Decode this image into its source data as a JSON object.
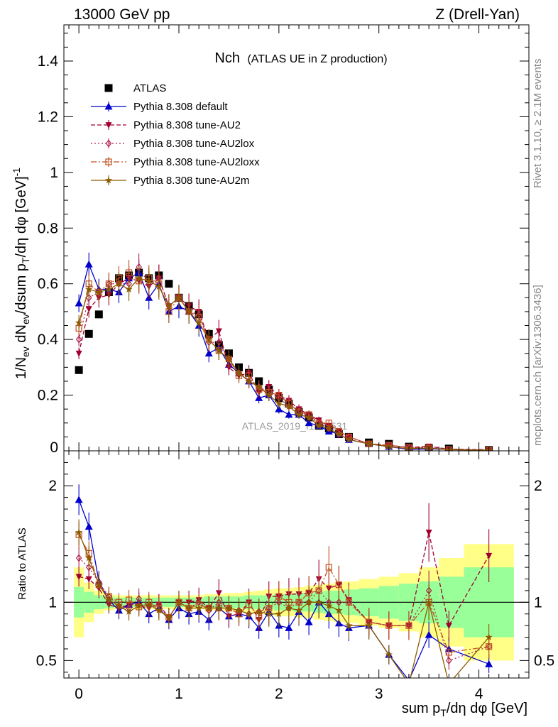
{
  "header": {
    "left": "13000 GeV pp",
    "right": "Z (Drell-Yan)"
  },
  "side_labels": {
    "rivet": "Rivet 3.1.10, ≥ 2.1M events",
    "mcplots": "mcplots.cern.ch [arXiv:1306.3436]"
  },
  "watermark": "ATLAS_2019_I1736531",
  "chart_data": [
    {
      "type": "scatter",
      "panel": "main",
      "title": "Nch",
      "subtitle": "(ATLAS UE in Z production)",
      "ylabel": "1/N_ev dN_ev/dsum p_T/dη dφ [GeV]^-1",
      "xlim": [
        -0.15,
        4.5
      ],
      "ylim": [
        0,
        1.53
      ],
      "x_ticks": [
        0,
        1,
        2,
        3,
        4
      ],
      "y_ticks": [
        0.2,
        0.4,
        0.6,
        0.8,
        1,
        1.2,
        1.4
      ],
      "y_tick_labels": [
        "0.2",
        "0.4",
        "0.6",
        "0.8",
        "1",
        "1.2",
        "1.4"
      ],
      "y_zero_label": "0",
      "legend_position": "top-left",
      "x": [
        0.0,
        0.1,
        0.2,
        0.3,
        0.4,
        0.5,
        0.6,
        0.7,
        0.8,
        0.9,
        1.0,
        1.1,
        1.2,
        1.3,
        1.4,
        1.5,
        1.6,
        1.7,
        1.8,
        1.9,
        2.0,
        2.1,
        2.2,
        2.3,
        2.4,
        2.5,
        2.6,
        2.7,
        2.9,
        3.1,
        3.3,
        3.5,
        3.7,
        4.1
      ],
      "series": [
        {
          "name": "ATLAS",
          "color": "#000000",
          "marker": "square",
          "line": "none",
          "values": [
            0.29,
            0.42,
            0.49,
            0.57,
            0.62,
            0.63,
            0.64,
            0.62,
            0.63,
            0.6,
            0.55,
            0.52,
            0.49,
            0.42,
            0.38,
            0.35,
            0.3,
            0.28,
            0.25,
            0.22,
            0.19,
            0.17,
            0.14,
            0.12,
            0.09,
            0.08,
            0.06,
            0.05,
            0.03,
            0.025,
            0.015,
            0.01,
            0.008,
            0.003
          ]
        },
        {
          "name": "Pythia 8.308 default",
          "color": "#0000cc",
          "marker": "triangle-up",
          "line": "solid",
          "values": [
            0.53,
            0.67,
            0.58,
            0.58,
            0.57,
            0.62,
            0.64,
            0.55,
            0.6,
            0.5,
            0.52,
            0.5,
            0.45,
            0.35,
            0.37,
            0.31,
            0.28,
            0.25,
            0.19,
            0.2,
            0.15,
            0.13,
            0.13,
            0.1,
            0.09,
            0.07,
            0.06,
            0.04,
            0.025,
            0.015,
            0.005,
            0.007,
            0.005,
            0.002
          ]
        },
        {
          "name": "Pythia 8.308 tune-AU2",
          "color": "#a00030",
          "marker": "triangle-down",
          "line": "dashed",
          "values": [
            0.35,
            0.51,
            0.55,
            0.56,
            0.6,
            0.62,
            0.61,
            0.59,
            0.62,
            0.52,
            0.55,
            0.52,
            0.5,
            0.4,
            0.43,
            0.3,
            0.27,
            0.28,
            0.21,
            0.23,
            0.2,
            0.18,
            0.15,
            0.13,
            0.11,
            0.09,
            0.07,
            0.05,
            0.025,
            0.02,
            0.012,
            0.016,
            0.006,
            0.004
          ]
        },
        {
          "name": "Pythia 8.308 tune-AU2lox",
          "color": "#b02050",
          "marker": "diamond-open",
          "line": "dotted",
          "values": [
            0.4,
            0.55,
            0.57,
            0.6,
            0.6,
            0.6,
            0.66,
            0.6,
            0.62,
            0.52,
            0.55,
            0.5,
            0.49,
            0.39,
            0.39,
            0.33,
            0.28,
            0.25,
            0.23,
            0.21,
            0.19,
            0.16,
            0.14,
            0.12,
            0.1,
            0.08,
            0.06,
            0.05,
            0.025,
            0.02,
            0.012,
            0.011,
            0.004,
            0.002
          ]
        },
        {
          "name": "Pythia 8.308 tune-AU2loxx",
          "color": "#c05020",
          "marker": "square-open",
          "line": "dashdot",
          "values": [
            0.44,
            0.6,
            0.57,
            0.6,
            0.62,
            0.64,
            0.61,
            0.62,
            0.6,
            0.5,
            0.55,
            0.5,
            0.48,
            0.4,
            0.36,
            0.33,
            0.27,
            0.27,
            0.22,
            0.21,
            0.2,
            0.17,
            0.14,
            0.13,
            0.1,
            0.1,
            0.07,
            0.05,
            0.025,
            0.02,
            0.012,
            0.01,
            0.005,
            0.002
          ]
        },
        {
          "name": "Pythia 8.308 tune-AU2m",
          "color": "#8b5a00",
          "marker": "star",
          "line": "solid",
          "values": [
            0.46,
            0.58,
            0.57,
            0.58,
            0.6,
            0.58,
            0.62,
            0.61,
            0.59,
            0.52,
            0.55,
            0.5,
            0.46,
            0.4,
            0.36,
            0.33,
            0.28,
            0.25,
            0.23,
            0.2,
            0.17,
            0.16,
            0.13,
            0.12,
            0.09,
            0.08,
            0.06,
            0.04,
            0.025,
            0.015,
            0.008,
            0.01,
            0.004,
            0.002
          ]
        }
      ]
    },
    {
      "type": "scatter",
      "panel": "ratio",
      "ylabel": "Ratio to ATLAS",
      "xlabel": "sum p_T/dη dφ [GeV]",
      "xlim": [
        -0.15,
        4.5
      ],
      "ylim": [
        0.35,
        2.3
      ],
      "y_ticks": [
        0.5,
        1,
        2
      ],
      "y_tick_labels": [
        "0.5",
        "1",
        "2"
      ],
      "x_tick_labels": [
        "0",
        "1",
        "2",
        "3",
        "4"
      ],
      "reference_line": 1,
      "bands": {
        "colors": {
          "stat": "#99ff99",
          "total": "#ffff88"
        },
        "x_edges": [
          -0.05,
          0.05,
          0.15,
          0.25,
          0.35,
          0.45,
          0.55,
          0.65,
          0.75,
          0.85,
          0.95,
          1.05,
          1.15,
          1.25,
          1.35,
          1.45,
          1.55,
          1.65,
          1.75,
          1.85,
          1.95,
          2.05,
          2.15,
          2.25,
          2.35,
          2.45,
          2.55,
          2.65,
          2.8,
          3.0,
          3.2,
          3.4,
          3.6,
          3.85,
          4.35
        ],
        "stat_halfwidth": [
          0.13,
          0.09,
          0.06,
          0.05,
          0.04,
          0.04,
          0.04,
          0.04,
          0.04,
          0.04,
          0.04,
          0.04,
          0.04,
          0.05,
          0.05,
          0.05,
          0.05,
          0.06,
          0.06,
          0.06,
          0.07,
          0.07,
          0.08,
          0.08,
          0.09,
          0.1,
          0.1,
          0.11,
          0.12,
          0.14,
          0.16,
          0.18,
          0.22,
          0.3,
          0.45
        ],
        "total_halfwidth": [
          0.3,
          0.17,
          0.1,
          0.07,
          0.06,
          0.06,
          0.06,
          0.06,
          0.06,
          0.06,
          0.06,
          0.06,
          0.06,
          0.07,
          0.07,
          0.08,
          0.08,
          0.09,
          0.1,
          0.11,
          0.12,
          0.12,
          0.13,
          0.14,
          0.15,
          0.16,
          0.17,
          0.18,
          0.2,
          0.22,
          0.25,
          0.3,
          0.38,
          0.5,
          0.78
        ]
      },
      "series": [
        {
          "name": "Pythia 8.308 default",
          "color": "#0000cc",
          "marker": "triangle-up",
          "line": "solid",
          "values": [
            1.88,
            1.65,
            1.18,
            1.02,
            0.93,
            0.98,
            1.0,
            0.9,
            0.95,
            0.85,
            0.95,
            0.9,
            0.92,
            0.85,
            0.95,
            0.88,
            0.9,
            0.88,
            0.78,
            0.92,
            0.8,
            0.78,
            0.92,
            0.83,
            1.0,
            0.9,
            0.82,
            0.78,
            0.8,
            0.55,
            0.33,
            0.72,
            0.6,
            0.47
          ]
        },
        {
          "name": "Pythia 8.308 tune-AU2",
          "color": "#a00030",
          "marker": "triangle-down",
          "line": "dashed",
          "values": [
            1.22,
            1.2,
            1.12,
            0.98,
            0.95,
            0.98,
            0.97,
            0.95,
            0.98,
            0.87,
            1.0,
            1.0,
            1.02,
            0.95,
            1.08,
            0.88,
            0.9,
            1.0,
            0.85,
            1.05,
            1.05,
            1.07,
            1.07,
            1.08,
            1.2,
            1.12,
            1.15,
            1.02,
            0.83,
            0.8,
            0.8,
            1.6,
            0.8,
            1.4
          ]
        },
        {
          "name": "Pythia 8.308 tune-AU2lox",
          "color": "#b02050",
          "marker": "diamond-open",
          "line": "dotted",
          "values": [
            1.38,
            1.3,
            1.17,
            1.05,
            0.97,
            0.95,
            1.03,
            0.97,
            0.98,
            0.87,
            1.0,
            0.95,
            1.0,
            0.93,
            1.0,
            0.95,
            0.93,
            0.9,
            0.92,
            0.95,
            1.0,
            0.95,
            1.0,
            1.0,
            1.1,
            1.0,
            1.0,
            1.0,
            0.83,
            0.8,
            0.8,
            1.1,
            0.5,
            0.62
          ]
        },
        {
          "name": "Pythia 8.308 tune-AU2loxx",
          "color": "#c05020",
          "marker": "square-open",
          "line": "dashdot",
          "values": [
            1.58,
            1.42,
            1.15,
            1.05,
            1.0,
            1.02,
            0.96,
            1.0,
            0.95,
            0.87,
            1.0,
            0.95,
            0.98,
            0.95,
            0.95,
            0.95,
            0.9,
            0.98,
            0.88,
            0.95,
            1.05,
            1.0,
            1.0,
            1.08,
            1.1,
            1.3,
            1.15,
            1.0,
            0.83,
            0.8,
            0.8,
            1.0,
            0.57,
            0.62
          ]
        },
        {
          "name": "Pythia 8.308 tune-AU2m",
          "color": "#8b5a00",
          "marker": "star",
          "line": "solid",
          "values": [
            1.6,
            1.38,
            1.15,
            1.02,
            0.97,
            0.92,
            0.97,
            0.98,
            0.93,
            0.87,
            1.0,
            0.95,
            0.95,
            0.95,
            0.95,
            0.95,
            0.93,
            0.9,
            0.92,
            0.9,
            0.9,
            0.95,
            0.93,
            1.0,
            1.0,
            0.97,
            0.93,
            0.8,
            0.8,
            0.55,
            0.3,
            1.0,
            0.3,
            0.7
          ]
        }
      ]
    }
  ]
}
